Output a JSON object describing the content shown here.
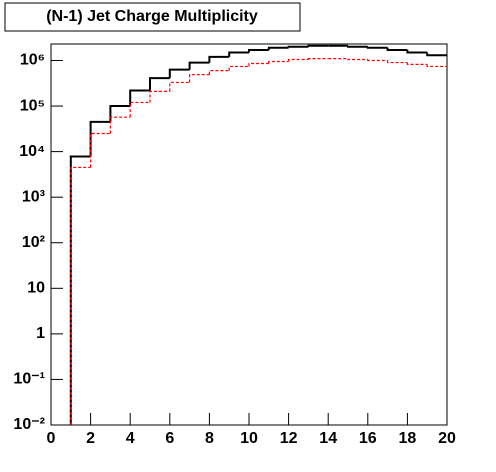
{
  "chart_data": {
    "type": "histogram",
    "title": "(N-1) Jet Charge Multiplicity",
    "bins": [
      0,
      1,
      2,
      3,
      4,
      5,
      6,
      7,
      8,
      9,
      10,
      11,
      12,
      13,
      14,
      15,
      16,
      17,
      18,
      19,
      20
    ],
    "series": [
      {
        "color": "#000000",
        "values": [
          null,
          7800,
          45000,
          100000,
          220000,
          410000,
          630000,
          900000,
          1200000,
          1500000,
          1700000,
          1900000,
          2000000,
          2100000,
          2100000,
          2000000,
          1900000,
          1700000,
          1500000,
          1300000
        ]
      },
      {
        "color": "#ff0000",
        "values": [
          null,
          4500,
          25000,
          57000,
          120000,
          210000,
          330000,
          490000,
          600000,
          740000,
          860000,
          950000,
          1050000,
          1100000,
          1100000,
          1050000,
          1000000,
          900000,
          820000,
          740000
        ]
      }
    ],
    "xlim": [
      0,
      20
    ],
    "xticks": [
      0,
      2,
      4,
      6,
      8,
      10,
      12,
      14,
      16,
      18,
      20
    ],
    "ylim": [
      0.01,
      2300000
    ],
    "log_y": true,
    "yticks": [
      {
        "value": 0.01,
        "label": "10⁻²"
      },
      {
        "value": 0.1,
        "label": "10⁻¹"
      },
      1,
      10,
      {
        "value": 100,
        "label": "10²"
      },
      {
        "value": 1000,
        "label": "10³"
      },
      {
        "value": 10000,
        "label": "10⁴"
      },
      {
        "value": 100000,
        "label": "10⁵"
      },
      {
        "value": 1000000,
        "label": "10⁶"
      }
    ]
  }
}
